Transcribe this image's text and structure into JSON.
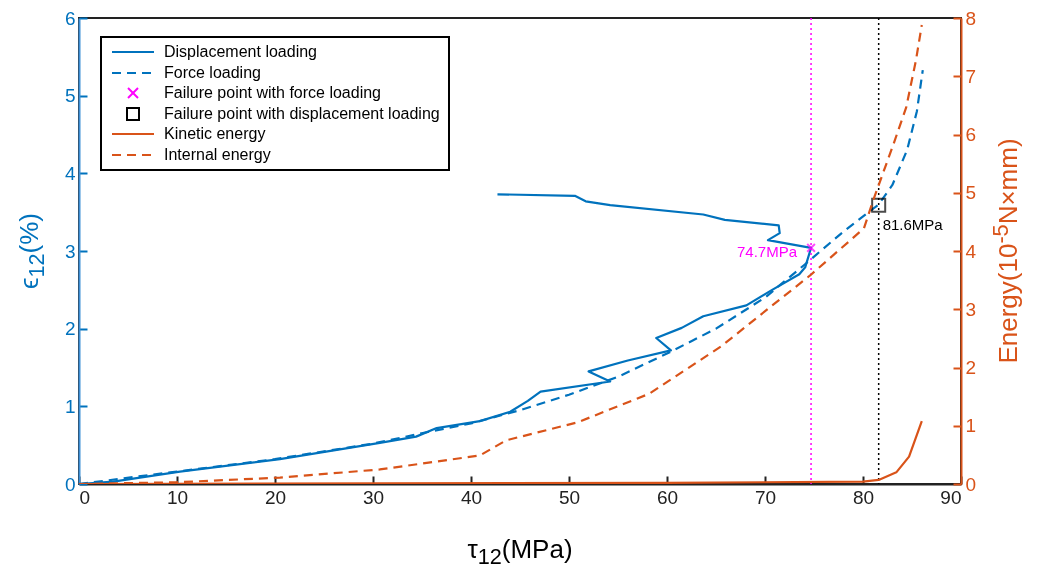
{
  "chart_data": {
    "type": "line",
    "xlabel": "τ$_{12}$(MPa)",
    "ylabel": "ϵ$_{12}$(%)",
    "y2label": "Energy(10$^{-5}$N×mm)",
    "xlim": [
      0,
      90
    ],
    "xticks": [
      0,
      10,
      20,
      30,
      40,
      50,
      60,
      70,
      80,
      90
    ],
    "ylim": [
      0,
      6
    ],
    "yticks": [
      0,
      1,
      2,
      3,
      4,
      5,
      6
    ],
    "y2lim": [
      0,
      8
    ],
    "y2ticks": [
      0,
      1,
      2,
      3,
      4,
      5,
      6,
      7,
      8
    ],
    "grid": false,
    "legend": "top left",
    "series": [
      {
        "name": "Displacement loading",
        "color": "#0072bd",
        "line_style": "solid",
        "x": [
          0,
          3.5,
          10.3,
          20.5,
          30.7,
          34.4,
          36.5,
          40.9,
          44.0,
          45.8,
          47.1,
          54.2,
          52.0,
          56.0,
          60.4,
          58.9,
          61.5,
          63.7,
          68.1,
          70.6,
          73.5,
          74.1,
          74.7,
          70.3,
          71.5,
          71.4,
          65.9,
          63.7,
          54.2,
          51.7,
          50.6,
          42.7
        ],
        "values": [
          0,
          0.03,
          0.16,
          0.32,
          0.53,
          0.61,
          0.72,
          0.81,
          0.93,
          1.07,
          1.19,
          1.32,
          1.45,
          1.59,
          1.72,
          1.88,
          2.01,
          2.16,
          2.3,
          2.49,
          2.7,
          2.79,
          3.04,
          3.14,
          3.23,
          3.33,
          3.4,
          3.47,
          3.59,
          3.64,
          3.71,
          3.73
        ]
      },
      {
        "name": "Force loading",
        "color": "#0072bd",
        "line_style": "dashed",
        "x": [
          0,
          10,
          20,
          30,
          36,
          40,
          45,
          50,
          55,
          60,
          65,
          70,
          74,
          78,
          81.6,
          83,
          84.5,
          85.5,
          86.1
        ],
        "values": [
          0,
          0.16,
          0.32,
          0.52,
          0.68,
          0.78,
          0.95,
          1.15,
          1.38,
          1.68,
          2.0,
          2.4,
          2.82,
          3.25,
          3.6,
          3.85,
          4.3,
          4.8,
          5.33
        ]
      },
      {
        "name": "Failure point with force loading",
        "type": "scatter",
        "color": "#ff00ff",
        "marker": "cross",
        "x": [
          74.7
        ],
        "values": [
          3.04
        ]
      },
      {
        "name": "Failure point with displacement loading",
        "type": "scatter",
        "color": "#000000",
        "marker": "square",
        "x": [
          81.6
        ],
        "values": [
          3.59
        ]
      },
      {
        "name": "Kinetic energy",
        "color": "#d95319",
        "line_style": "solid",
        "axis": "y2",
        "x": [
          0,
          60,
          80,
          81.6,
          83.4,
          84.7,
          86.0
        ],
        "values": [
          0,
          0.02,
          0.04,
          0.07,
          0.2,
          0.47,
          1.08
        ]
      },
      {
        "name": "Internal energy",
        "color": "#d95319",
        "line_style": "dashed",
        "axis": "y2",
        "x": [
          0,
          10,
          20.5,
          30.7,
          40.9,
          43.6,
          50.9,
          58.2,
          65.5,
          71.0,
          74.6,
          80.1,
          81.0,
          83.1,
          84.4,
          85.4,
          86.0
        ],
        "values": [
          0,
          0.03,
          0.11,
          0.25,
          0.49,
          0.75,
          1.06,
          1.55,
          2.36,
          3.1,
          3.58,
          4.39,
          4.85,
          5.83,
          6.46,
          7.27,
          7.88
        ]
      }
    ],
    "ref_lines": [
      {
        "axis": "x",
        "value": 74.7,
        "color": "#ff00ff",
        "line_style": "dotted"
      },
      {
        "axis": "x",
        "value": 81.6,
        "color": "#000000",
        "line_style": "dotted"
      }
    ],
    "annotations": [
      {
        "text": "74.7MPa",
        "x": 74.7,
        "y": 3.04
      },
      {
        "text": "81.6MPa",
        "x": 81.6,
        "y": 3.59
      }
    ]
  }
}
